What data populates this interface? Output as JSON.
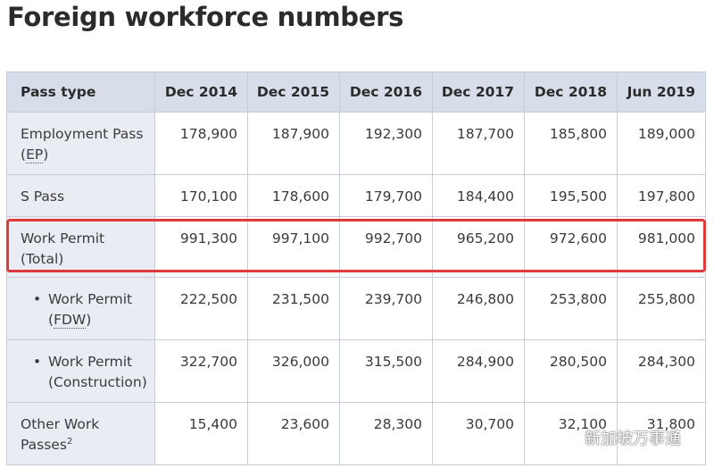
{
  "title": "Foreign workforce numbers",
  "table": {
    "headers": [
      "Pass type",
      "Dec 2014",
      "Dec 2015",
      "Dec 2016",
      "Dec 2017",
      "Dec 2018",
      "Jun 2019"
    ],
    "rows": [
      {
        "label": "Employment Pass (",
        "abbr": "EP",
        "label_end": ")",
        "values": [
          "178,900",
          "187,900",
          "192,300",
          "187,700",
          "185,800",
          "189,000"
        ]
      },
      {
        "label": "S Pass",
        "values": [
          "170,100",
          "178,600",
          "179,700",
          "184,400",
          "195,500",
          "197,800"
        ]
      },
      {
        "label": "Work Permit (Total)",
        "values": [
          "991,300",
          "997,100",
          "992,700",
          "965,200",
          "972,600",
          "981,000"
        ]
      },
      {
        "bullet": "•",
        "label": "Work Permit (",
        "abbr": "FDW",
        "label_end": ")",
        "values": [
          "222,500",
          "231,500",
          "239,700",
          "246,800",
          "253,800",
          "255,800"
        ]
      },
      {
        "bullet": "•",
        "label": "Work Permit (Construction)",
        "values": [
          "322,700",
          "326,000",
          "315,500",
          "284,900",
          "280,500",
          "284,300"
        ]
      },
      {
        "label": "Other Work Passes",
        "sup": "2",
        "values": [
          "15,400",
          "23,600",
          "28,300",
          "30,700",
          "32,100",
          "31,800"
        ]
      }
    ]
  },
  "highlight_color": "#e0393a",
  "watermark": {
    "text": "新加坡万事通",
    "icon": "wechat-icon"
  }
}
